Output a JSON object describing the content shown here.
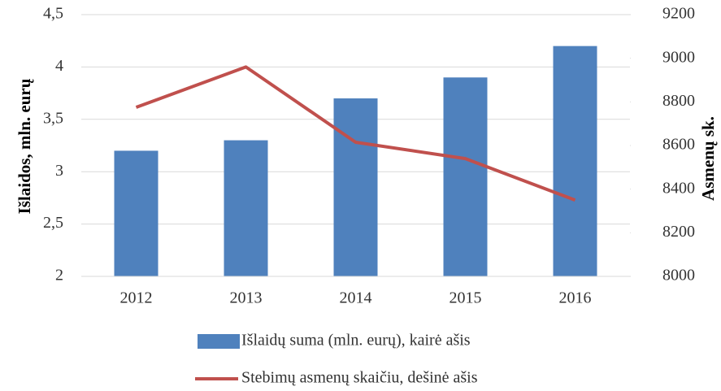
{
  "chart_data": {
    "type": "bar-line",
    "y_label": "Išlaidos, mln. eurų",
    "y2_label": "Asmenų sk.",
    "categories": [
      "2012",
      "2013",
      "2014",
      "2015",
      "2016"
    ],
    "series": [
      {
        "name": "Išlaidų suma (mln. eurų), kairė ašis",
        "type": "bar",
        "color": "#4f81bd",
        "values": [
          3.2,
          3.3,
          3.7,
          3.9,
          4.2
        ]
      },
      {
        "name": "Stebimų asmenų skaičiu, dešinė ašis",
        "type": "line",
        "color": "#c0504d",
        "axis": "y2",
        "values": [
          8775,
          8960,
          8615,
          8540,
          8350
        ]
      }
    ],
    "ylim": [
      2,
      4.5
    ],
    "yticks": [
      2,
      {
        "value": 2.5,
        "label": "2,5"
      },
      3,
      {
        "value": 3.5,
        "label": "3,5"
      },
      4,
      {
        "value": 4.5,
        "label": "4,5"
      }
    ],
    "y2lim": [
      8000,
      9200
    ],
    "y2ticks": [
      8000,
      8200,
      8400,
      8600,
      8800,
      9000,
      9200
    ],
    "grid": true,
    "legend": "bottom"
  }
}
